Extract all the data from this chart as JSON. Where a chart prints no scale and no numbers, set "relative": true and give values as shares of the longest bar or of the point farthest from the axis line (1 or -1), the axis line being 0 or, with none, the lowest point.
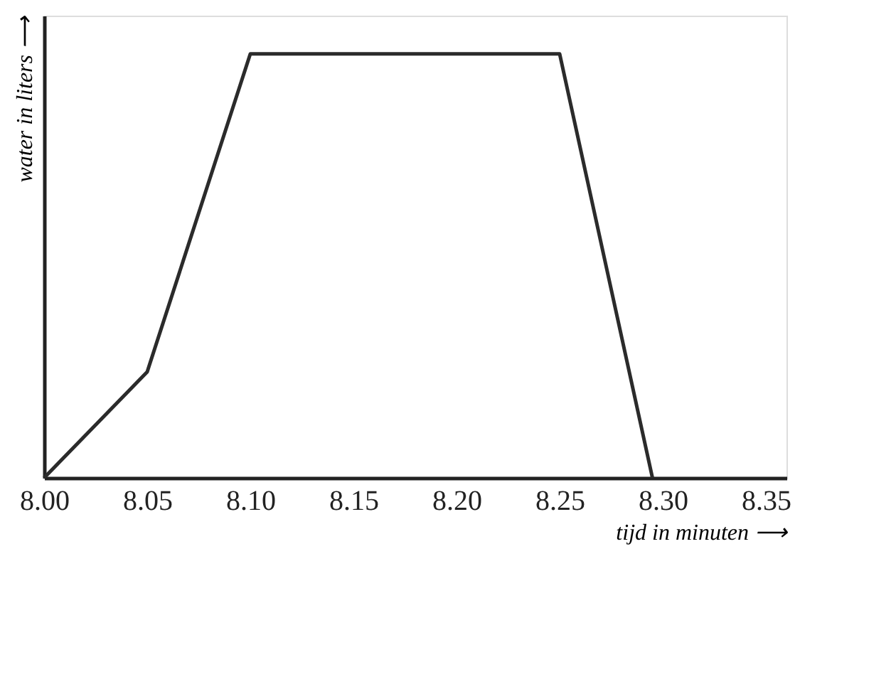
{
  "chart_data": {
    "type": "line",
    "relative": true,
    "xlabel": "tijd in minuten ⟶",
    "ylabel": "water in liters ⟶",
    "x": [
      8.0,
      8.05,
      8.1,
      8.25,
      8.295
    ],
    "series": [
      {
        "color": "#2b2b2b",
        "values": [
          0,
          0.25,
          1,
          1,
          0
        ]
      }
    ],
    "xlim": [
      8.0,
      8.36
    ],
    "xticks": [
      {
        "value": 8.0,
        "label": "8.00"
      },
      {
        "value": 8.05,
        "label": "8.05"
      },
      {
        "value": 8.1,
        "label": "8.10"
      },
      {
        "value": 8.15,
        "label": "8.15"
      },
      {
        "value": 8.2,
        "label": "8.20"
      },
      {
        "value": 8.25,
        "label": "8.25"
      },
      {
        "value": 8.3,
        "label": "8.30"
      },
      {
        "value": 8.35,
        "label": "8.35"
      }
    ],
    "tick_labels": "x",
    "grid": false,
    "marker": "none",
    "line_style": "solid"
  }
}
